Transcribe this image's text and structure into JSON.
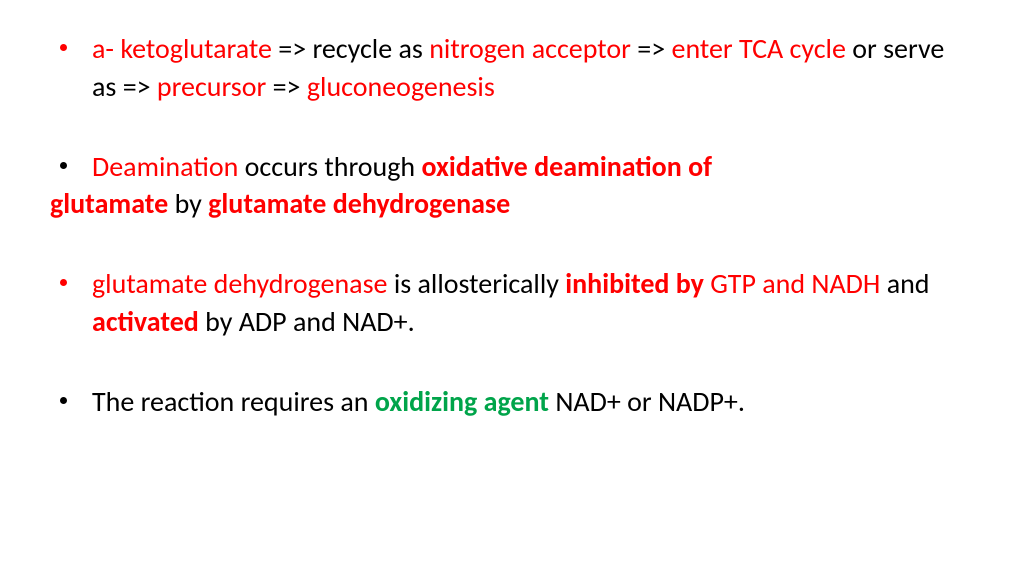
{
  "colors": {
    "red": "#ff0000",
    "black": "#000000",
    "green": "#00a44a",
    "background": "#ffffff"
  },
  "typography": {
    "font_family": "Calibri, Arial, sans-serif",
    "font_size_pt": 21,
    "line_height": 1.35
  },
  "bullets": [
    {
      "bullet_color": "red",
      "spans": [
        {
          "text": "a- ketoglutarate ",
          "color": "red",
          "bold": false
        },
        {
          "text": "=> recycle as  ",
          "color": "black",
          "bold": false
        },
        {
          "text": "nitrogen acceptor ",
          "color": "red",
          "bold": false
        },
        {
          "text": "=> ",
          "color": "black",
          "bold": false
        },
        {
          "text": "enter TCA cycle  ",
          "color": "red",
          "bold": false
        },
        {
          "text": "or serve as => ",
          "color": "black",
          "bold": false
        },
        {
          "text": "precursor  ",
          "color": "red",
          "bold": false
        },
        {
          "text": "=> ",
          "color": "black",
          "bold": false
        },
        {
          "text": "gluconeogenesis",
          "color": "red",
          "bold": false
        }
      ],
      "hanging_spans": []
    },
    {
      "bullet_color": "black",
      "spans": [
        {
          "text": " ",
          "color": "black",
          "bold": false
        },
        {
          "text": "Deamination ",
          "color": "red",
          "bold": false
        },
        {
          "text": "occurs through ",
          "color": "black",
          "bold": false
        },
        {
          "text": "oxidative deamination of ",
          "color": "red",
          "bold": true
        }
      ],
      "hanging_spans": [
        {
          "text": "glutamate ",
          "color": "red",
          "bold": true
        },
        {
          "text": "by   ",
          "color": "black",
          "bold": false
        },
        {
          "text": "glutamate dehydrogenase",
          "color": "red",
          "bold": true
        }
      ]
    },
    {
      "bullet_color": "red",
      "spans": [
        {
          "text": "glutamate dehydrogenase ",
          "color": "red",
          "bold": false
        },
        {
          "text": "is allosterically ",
          "color": "black",
          "bold": false
        },
        {
          "text": "inhibited by ",
          "color": "red",
          "bold": true
        },
        {
          "text": "GTP and NADH ",
          "color": "red",
          "bold": false
        },
        {
          "text": "and ",
          "color": "black",
          "bold": false
        },
        {
          "text": "activated ",
          "color": "red",
          "bold": true
        },
        {
          "text": "by ADP and NAD+.",
          "color": "black",
          "bold": false
        }
      ],
      "hanging_spans": []
    },
    {
      "bullet_color": "black",
      "spans": [
        {
          "text": "The reaction  requires an ",
          "color": "black",
          "bold": false
        },
        {
          "text": "oxidizing agent ",
          "color": "green",
          "bold": true
        },
        {
          "text": "NAD+ or NADP+.",
          "color": "black",
          "bold": false
        }
      ],
      "hanging_spans": []
    }
  ]
}
